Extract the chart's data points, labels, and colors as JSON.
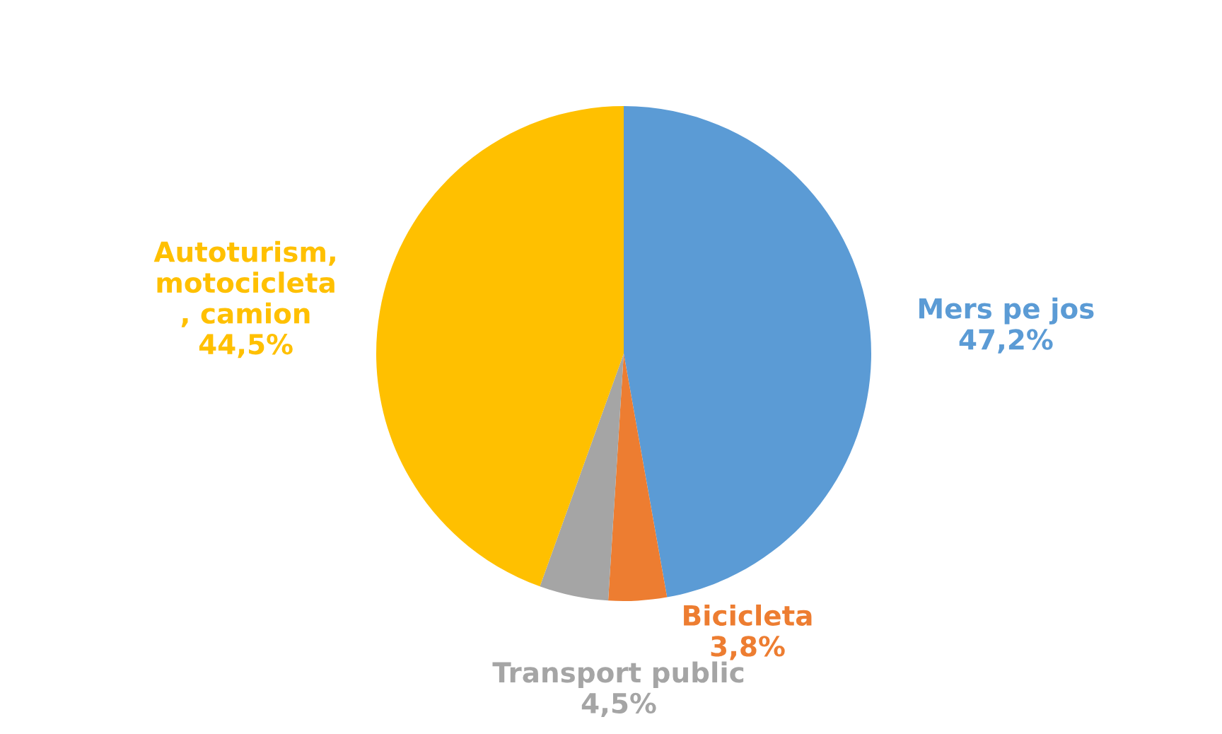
{
  "chart_data": {
    "type": "pie",
    "categories": [
      "Mers pe jos",
      "Bicicleta",
      "Transport public",
      "Autoturism,\nmotocicleta\n, camion"
    ],
    "values": [
      47.2,
      3.8,
      4.5,
      44.5
    ],
    "value_labels": [
      "47,2%",
      "3,8%",
      "4,5%",
      "44,5%"
    ],
    "colors": [
      "#5b9bd5",
      "#ed7d31",
      "#a5a5a5",
      "#ffc000"
    ],
    "legend": false
  }
}
